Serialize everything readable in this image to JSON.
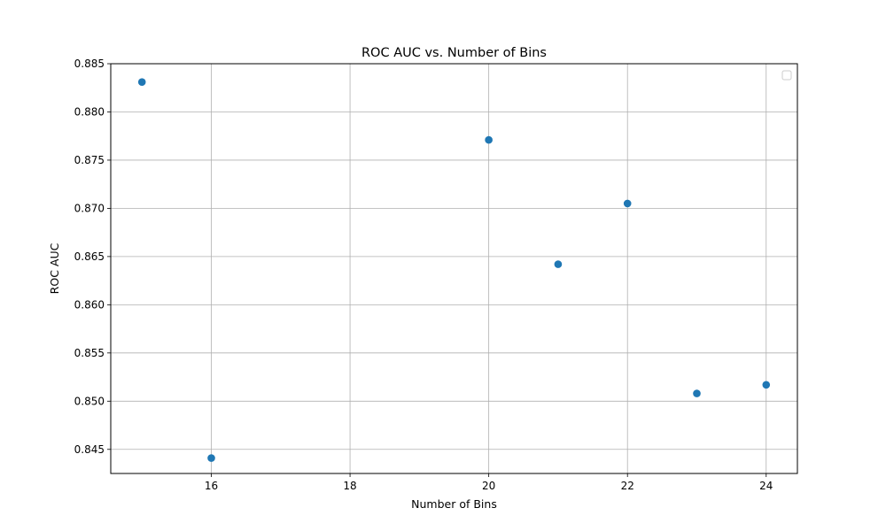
{
  "chart_data": {
    "type": "scatter",
    "title": "ROC AUC vs. Number of Bins",
    "xlabel": "Number of Bins",
    "ylabel": "ROC AUC",
    "xlim": [
      14.55,
      24.45
    ],
    "ylim": [
      0.8425,
      0.885
    ],
    "xticks": [
      16,
      18,
      20,
      22,
      24
    ],
    "xtick_labels": [
      "16",
      "18",
      "20",
      "22",
      "24"
    ],
    "yticks": [
      0.845,
      0.85,
      0.855,
      0.86,
      0.865,
      0.87,
      0.875,
      0.88,
      0.885
    ],
    "ytick_labels": [
      "0.845",
      "0.850",
      "0.855",
      "0.860",
      "0.865",
      "0.870",
      "0.875",
      "0.880",
      "0.885"
    ],
    "grid": true,
    "legend": {
      "placement": "top-right",
      "entries": []
    },
    "series": [
      {
        "color": "#1f77b4",
        "points": [
          {
            "x": 15,
            "y": 0.8831
          },
          {
            "x": 16,
            "y": 0.8441
          },
          {
            "x": 20,
            "y": 0.8771
          },
          {
            "x": 21,
            "y": 0.8642
          },
          {
            "x": 22,
            "y": 0.8705
          },
          {
            "x": 23,
            "y": 0.8508
          },
          {
            "x": 24,
            "y": 0.8517
          }
        ]
      }
    ]
  }
}
